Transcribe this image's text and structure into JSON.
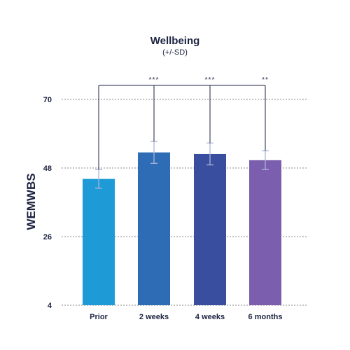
{
  "chart_data": {
    "type": "bar",
    "title": "Wellbeing",
    "subtitle": "(+/-SD)",
    "ylabel": "WEMWBS",
    "xlabel": "",
    "categories": [
      "Prior",
      "2 weeks",
      "4 weeks",
      "6 months"
    ],
    "values": [
      44.5,
      53.0,
      52.5,
      50.5
    ],
    "error": [
      3.0,
      3.5,
      3.5,
      3.0
    ],
    "colors": [
      "#1e9bd7",
      "#2e6db5",
      "#3a4ea0",
      "#7b5fae"
    ],
    "ylim": [
      4,
      70
    ],
    "yticks": [
      4,
      26,
      48,
      70
    ],
    "grid": true,
    "significance": [
      "***",
      "***",
      "**"
    ],
    "comparisons": [
      {
        "from": "Prior",
        "to": "2 weeks",
        "label": "***"
      },
      {
        "from": "Prior",
        "to": "4 weeks",
        "label": "***"
      },
      {
        "from": "Prior",
        "to": "6 months",
        "label": "**"
      }
    ]
  }
}
